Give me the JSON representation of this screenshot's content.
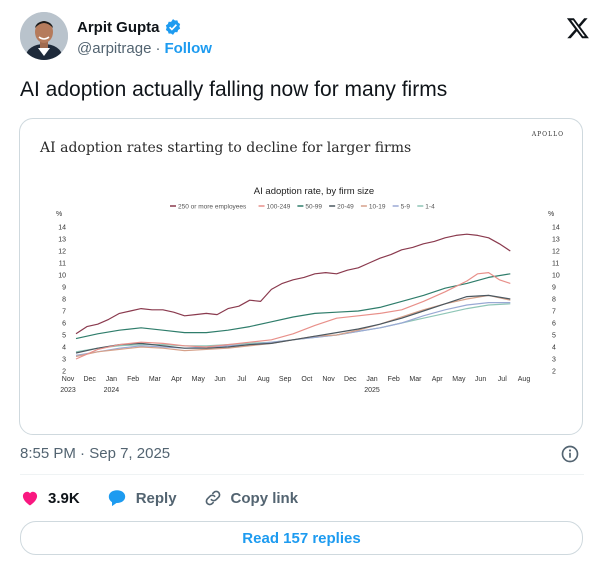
{
  "author": {
    "name": "Arpit Gupta",
    "handle": "@arpitrage",
    "separator": "·",
    "follow_label": "Follow"
  },
  "tweet": {
    "text": "AI adoption actually falling now for many firms"
  },
  "media": {
    "title": "AI adoption rates starting to decline for larger firms",
    "brand": "APOLLO"
  },
  "chart_data": {
    "type": "line",
    "title": "AI adoption rate, by firm size",
    "ylabel": "%",
    "ylim": [
      2,
      14
    ],
    "y_ticks": [
      "2",
      "3",
      "4",
      "5",
      "6",
      "7",
      "8",
      "9",
      "10",
      "11",
      "12",
      "13",
      "14"
    ],
    "x_ticks": [
      "Nov",
      "Dec",
      "Jan",
      "Feb",
      "Mar",
      "Apr",
      "May",
      "Jun",
      "Jul",
      "Aug",
      "Sep",
      "Oct",
      "Nov",
      "Dec",
      "Jan",
      "Feb",
      "Mar",
      "Apr",
      "May",
      "Jun",
      "Jul",
      "Aug"
    ],
    "year_labels": [
      "2023",
      "2024",
      "2025"
    ],
    "x_range": [
      0,
      21
    ],
    "grid": false,
    "legend_position": "top-center",
    "series": [
      {
        "name": "250 or more employees",
        "color": "#8a3a4e",
        "points": [
          [
            0,
            5.1
          ],
          [
            0.5,
            5.7
          ],
          [
            1,
            5.9
          ],
          [
            1.5,
            6.3
          ],
          [
            2,
            6.8
          ],
          [
            2.5,
            7.0
          ],
          [
            3,
            7.2
          ],
          [
            3.5,
            7.1
          ],
          [
            4,
            7.1
          ],
          [
            4.5,
            6.9
          ],
          [
            5,
            6.6
          ],
          [
            5.5,
            6.7
          ],
          [
            6,
            6.8
          ],
          [
            6.5,
            6.7
          ],
          [
            7,
            7.2
          ],
          [
            7.5,
            7.4
          ],
          [
            8,
            7.9
          ],
          [
            8.5,
            7.8
          ],
          [
            9,
            8.8
          ],
          [
            9.5,
            9.3
          ],
          [
            10,
            9.6
          ],
          [
            10.5,
            9.8
          ],
          [
            11,
            10.1
          ],
          [
            11.5,
            10.2
          ],
          [
            12,
            10.1
          ],
          [
            12.5,
            10.4
          ],
          [
            13,
            10.6
          ],
          [
            13.5,
            11.0
          ],
          [
            14,
            11.4
          ],
          [
            14.5,
            11.7
          ],
          [
            15,
            12.1
          ],
          [
            15.5,
            12.3
          ],
          [
            16,
            12.6
          ],
          [
            16.5,
            12.8
          ],
          [
            17,
            13.1
          ],
          [
            17.5,
            13.3
          ],
          [
            18,
            13.4
          ],
          [
            18.5,
            13.3
          ],
          [
            19,
            13.1
          ],
          [
            19.5,
            12.6
          ],
          [
            20,
            12.0
          ]
        ]
      },
      {
        "name": "100-249",
        "color": "#e8908a",
        "points": [
          [
            0,
            3.0
          ],
          [
            1,
            3.8
          ],
          [
            2,
            4.2
          ],
          [
            3,
            4.4
          ],
          [
            4,
            4.3
          ],
          [
            5,
            4.1
          ],
          [
            6,
            4.0
          ],
          [
            7,
            4.2
          ],
          [
            8,
            4.4
          ],
          [
            9,
            4.6
          ],
          [
            10,
            5.1
          ],
          [
            11,
            5.8
          ],
          [
            12,
            6.4
          ],
          [
            13,
            6.6
          ],
          [
            14,
            6.8
          ],
          [
            15,
            7.1
          ],
          [
            16,
            7.8
          ],
          [
            17,
            8.6
          ],
          [
            18,
            9.5
          ],
          [
            18.5,
            10.1
          ],
          [
            19,
            10.2
          ],
          [
            19.5,
            9.6
          ],
          [
            20,
            9.3
          ]
        ]
      },
      {
        "name": "50-99",
        "color": "#2f7d6b",
        "points": [
          [
            0,
            4.7
          ],
          [
            1,
            5.1
          ],
          [
            2,
            5.4
          ],
          [
            3,
            5.6
          ],
          [
            4,
            5.4
          ],
          [
            5,
            5.2
          ],
          [
            6,
            5.2
          ],
          [
            7,
            5.4
          ],
          [
            8,
            5.7
          ],
          [
            9,
            6.1
          ],
          [
            10,
            6.5
          ],
          [
            11,
            6.8
          ],
          [
            12,
            6.9
          ],
          [
            13,
            7.0
          ],
          [
            14,
            7.3
          ],
          [
            15,
            7.8
          ],
          [
            16,
            8.3
          ],
          [
            17,
            8.9
          ],
          [
            18,
            9.3
          ],
          [
            19,
            9.8
          ],
          [
            20,
            10.1
          ]
        ]
      },
      {
        "name": "20-49",
        "color": "#4b5860",
        "points": [
          [
            0,
            3.5
          ],
          [
            1,
            3.9
          ],
          [
            2,
            4.2
          ],
          [
            3,
            4.3
          ],
          [
            4,
            4.1
          ],
          [
            5,
            3.9
          ],
          [
            6,
            3.9
          ],
          [
            7,
            4.0
          ],
          [
            8,
            4.2
          ],
          [
            9,
            4.3
          ],
          [
            10,
            4.6
          ],
          [
            11,
            4.9
          ],
          [
            12,
            5.2
          ],
          [
            13,
            5.5
          ],
          [
            14,
            5.9
          ],
          [
            15,
            6.4
          ],
          [
            16,
            7.0
          ],
          [
            17,
            7.6
          ],
          [
            18,
            8.2
          ],
          [
            19,
            8.3
          ],
          [
            20,
            8.0
          ]
        ]
      },
      {
        "name": "10-19",
        "color": "#d6a18a",
        "points": [
          [
            0,
            3.2
          ],
          [
            1,
            3.6
          ],
          [
            2,
            3.8
          ],
          [
            3,
            4.0
          ],
          [
            4,
            3.9
          ],
          [
            5,
            3.7
          ],
          [
            6,
            3.8
          ],
          [
            7,
            3.9
          ],
          [
            8,
            4.1
          ],
          [
            9,
            4.3
          ],
          [
            10,
            4.6
          ],
          [
            11,
            4.9
          ],
          [
            12,
            5.0
          ],
          [
            13,
            5.4
          ],
          [
            14,
            5.9
          ],
          [
            15,
            6.5
          ],
          [
            16,
            7.1
          ],
          [
            17,
            7.6
          ],
          [
            18,
            8.0
          ],
          [
            19,
            8.3
          ],
          [
            20,
            7.9
          ]
        ]
      },
      {
        "name": "5-9",
        "color": "#9aa9d4",
        "points": [
          [
            0,
            3.3
          ],
          [
            1,
            3.6
          ],
          [
            2,
            3.9
          ],
          [
            3,
            4.1
          ],
          [
            4,
            4.0
          ],
          [
            5,
            3.9
          ],
          [
            6,
            4.0
          ],
          [
            7,
            4.1
          ],
          [
            8,
            4.2
          ],
          [
            9,
            4.4
          ],
          [
            10,
            4.6
          ],
          [
            11,
            4.8
          ],
          [
            12,
            5.0
          ],
          [
            13,
            5.3
          ],
          [
            14,
            5.6
          ],
          [
            15,
            6.0
          ],
          [
            16,
            6.6
          ],
          [
            17,
            7.1
          ],
          [
            18,
            7.5
          ],
          [
            19,
            7.7
          ],
          [
            20,
            7.7
          ]
        ]
      },
      {
        "name": "1-4",
        "color": "#8fc6b7",
        "points": [
          [
            0,
            3.6
          ],
          [
            1,
            3.9
          ],
          [
            2,
            4.1
          ],
          [
            3,
            4.2
          ],
          [
            4,
            4.2
          ],
          [
            5,
            4.1
          ],
          [
            6,
            4.1
          ],
          [
            7,
            4.2
          ],
          [
            8,
            4.3
          ],
          [
            9,
            4.4
          ],
          [
            10,
            4.6
          ],
          [
            11,
            4.8
          ],
          [
            12,
            5.0
          ],
          [
            13,
            5.3
          ],
          [
            14,
            5.6
          ],
          [
            15,
            6.0
          ],
          [
            16,
            6.4
          ],
          [
            17,
            6.8
          ],
          [
            18,
            7.2
          ],
          [
            19,
            7.5
          ],
          [
            20,
            7.6
          ]
        ]
      }
    ]
  },
  "meta": {
    "time": "8:55 PM",
    "separator": "·",
    "date": "Sep 7, 2025"
  },
  "actions": {
    "likes": "3.9K",
    "reply_label": "Reply",
    "copy_label": "Copy link"
  },
  "read_replies_label": "Read 157 replies",
  "colors": {
    "accent": "#1d9bf0",
    "like": "#f91880",
    "muted": "#536471"
  }
}
